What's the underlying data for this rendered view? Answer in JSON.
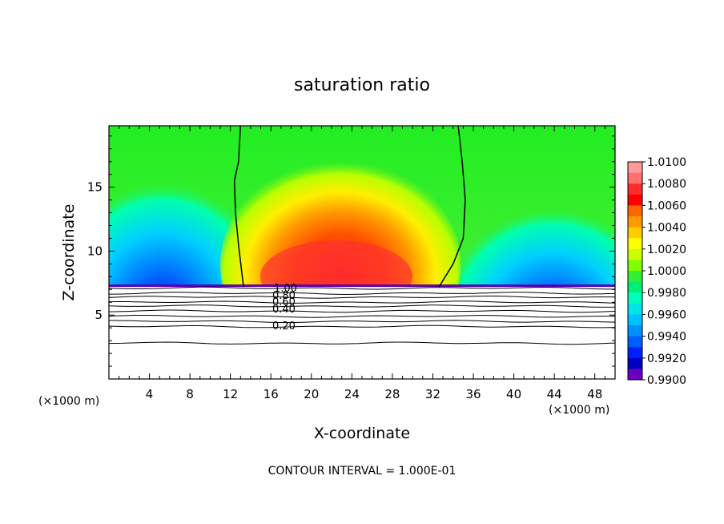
{
  "chart_data": {
    "type": "heatmap",
    "title": "saturation ratio",
    "xlabel": "X-coordinate",
    "ylabel": "Z-coordinate",
    "x_unit_left": "(×1000 m)",
    "x_unit_right": "(×1000 m)",
    "footer": "CONTOUR INTERVAL = 1.000E-01",
    "xlim": [
      0,
      50
    ],
    "ylim": [
      0,
      19.8
    ],
    "x_ticks": [
      "4",
      "8",
      "12",
      "16",
      "20",
      "24",
      "28",
      "32",
      "36",
      "40",
      "44",
      "48"
    ],
    "y_ticks": [
      "5",
      "10",
      "15"
    ],
    "colorbar": {
      "labels": [
        "1.0100",
        "1.0080",
        "1.0060",
        "1.0040",
        "1.0020",
        "1.0000",
        "0.9980",
        "0.9960",
        "0.9940",
        "0.9920",
        "0.9900"
      ],
      "colors": [
        "#ff9a9a",
        "#ff7070",
        "#ff2a2a",
        "#ff0000",
        "#ff6600",
        "#ff9900",
        "#ffcc00",
        "#ffff00",
        "#ccff00",
        "#80ff00",
        "#33ee33",
        "#00ee77",
        "#00ffbb",
        "#00e5e5",
        "#00c0ff",
        "#0090ff",
        "#0060ff",
        "#0020ff",
        "#0000c0",
        "#6a00c0"
      ]
    },
    "contour_labels": [
      "1.00",
      "0.80",
      "0.60",
      "0.40",
      "0.20"
    ],
    "cloud_surface_z": 7.2,
    "contour_levels_below": [
      {
        "level": "1.00",
        "z": 7.1
      },
      {
        "level": "0.90",
        "z": 6.7
      },
      {
        "level": "0.80",
        "z": 6.4
      },
      {
        "level": "0.70",
        "z": 6.0
      },
      {
        "level": "0.60",
        "z": 5.7
      },
      {
        "level": "0.50",
        "z": 5.3
      },
      {
        "level": "0.40",
        "z": 4.9
      },
      {
        "level": "0.30",
        "z": 4.5
      },
      {
        "level": "0.20",
        "z": 4.1
      },
      {
        "level": "0.10",
        "z": 2.8
      }
    ],
    "unity_contour_left": [
      [
        13.0,
        19.8
      ],
      [
        12.8,
        17.0
      ],
      [
        12.4,
        15.5
      ],
      [
        12.5,
        13.0
      ],
      [
        12.8,
        10.5
      ],
      [
        13.3,
        7.2
      ]
    ],
    "unity_contour_right": [
      [
        34.5,
        19.8
      ],
      [
        34.9,
        17.0
      ],
      [
        35.2,
        14.0
      ],
      [
        35.0,
        11.0
      ],
      [
        34.0,
        9.0
      ],
      [
        32.6,
        7.2
      ]
    ]
  }
}
